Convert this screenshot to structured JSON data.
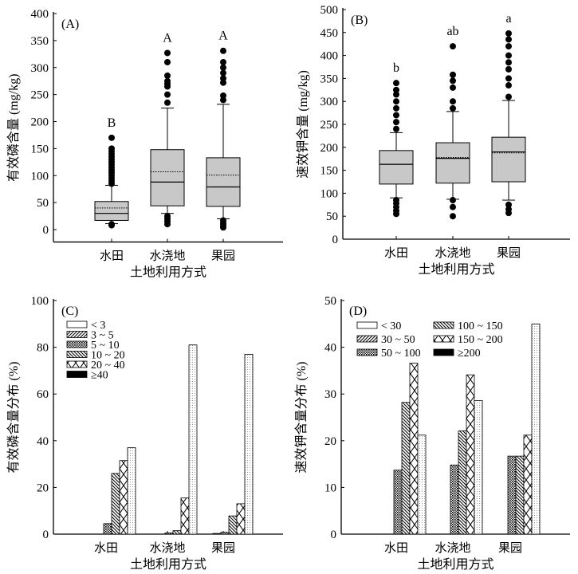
{
  "chart_data": [
    {
      "panel": "(A)",
      "type": "box",
      "ylabel": "有效磷含量 (mg/kg)",
      "xlabel": "土地利用方式",
      "ylim": [
        -20,
        400
      ],
      "yticks": [
        0,
        50,
        100,
        150,
        200,
        250,
        300,
        350,
        400
      ],
      "categories": [
        "水田",
        "水浇地",
        "果园"
      ],
      "boxes": [
        {
          "whisker_low": 11,
          "q1": 17,
          "median": 30,
          "mean": 40,
          "q3": 52,
          "whisker_high": 82,
          "outliers": [
            8,
            10,
            85,
            90,
            95,
            100,
            105,
            110,
            115,
            120,
            125,
            130,
            135,
            140,
            145,
            150,
            170
          ],
          "letter": "B"
        },
        {
          "whisker_low": 30,
          "q1": 44,
          "median": 88,
          "mean": 107,
          "q3": 148,
          "whisker_high": 225,
          "outliers": [
            10,
            15,
            20,
            25,
            235,
            250,
            265,
            270,
            275,
            285,
            310,
            327
          ],
          "letter": "A"
        },
        {
          "whisker_low": 20,
          "q1": 43,
          "median": 79,
          "mean": 101,
          "q3": 133,
          "whisker_high": 232,
          "outliers": [
            4,
            8,
            12,
            17,
            240,
            248,
            272,
            280,
            290,
            300,
            310,
            331
          ],
          "letter": "A"
        }
      ]
    },
    {
      "panel": "(B)",
      "type": "box",
      "ylabel": "速效钾含量 (mg/kg)",
      "xlabel": "土地利用方式",
      "ylim": [
        0,
        500
      ],
      "yticks": [
        0,
        50,
        100,
        150,
        200,
        250,
        300,
        350,
        400,
        450,
        500
      ],
      "categories": [
        "水田",
        "水浇地",
        "果园"
      ],
      "boxes": [
        {
          "whisker_low": 90,
          "q1": 120,
          "median": 163,
          "mean": 163,
          "q3": 193,
          "whisker_high": 232,
          "outliers": [
            55,
            62,
            70,
            78,
            85,
            240,
            255,
            270,
            285,
            300,
            315,
            325,
            340
          ],
          "letter": "b"
        },
        {
          "whisker_low": 87,
          "q1": 122,
          "median": 176,
          "mean": 178,
          "q3": 210,
          "whisker_high": 278,
          "outliers": [
            50,
            70,
            85,
            285,
            300,
            330,
            345,
            358,
            420
          ],
          "letter": "ab"
        },
        {
          "whisker_low": 85,
          "q1": 125,
          "median": 190,
          "mean": 188,
          "q3": 222,
          "whisker_high": 302,
          "outliers": [
            57,
            65,
            75,
            310,
            335,
            350,
            370,
            385,
            400,
            420,
            435,
            448
          ],
          "letter": "a"
        }
      ]
    },
    {
      "panel": "(C)",
      "type": "bar",
      "ylabel": "有效磷含量分布 (%)",
      "xlabel": "土地利用方式",
      "ylim": [
        0,
        100
      ],
      "yticks": [
        0,
        20,
        40,
        60,
        80,
        100
      ],
      "categories": [
        "水田",
        "水浇地",
        "果园"
      ],
      "series": [
        {
          "name": "< 3",
          "values": [
            0,
            0,
            0
          ]
        },
        {
          "name": "3 ~ 5",
          "values": [
            0,
            0,
            0.3
          ]
        },
        {
          "name": "5 ~ 10",
          "values": [
            4.5,
            0.5,
            0.8
          ]
        },
        {
          "name": "10 ~ 20",
          "values": [
            26,
            1.5,
            7.8
          ]
        },
        {
          "name": "20 ~ 40",
          "values": [
            31.5,
            15.5,
            13
          ]
        },
        {
          "name": "≥40",
          "values": [
            37,
            81,
            77
          ]
        }
      ]
    },
    {
      "panel": "(D)",
      "type": "bar",
      "ylabel": "速效钾含量分布 (%)",
      "xlabel": "土地利用方式",
      "ylim": [
        0,
        50
      ],
      "yticks": [
        0,
        10,
        20,
        30,
        40,
        50
      ],
      "categories": [
        "水田",
        "水浇地",
        "果园"
      ],
      "series": [
        {
          "name": "< 30",
          "values": [
            0,
            0,
            0
          ]
        },
        {
          "name": "30 ~ 50",
          "values": [
            0,
            0,
            0
          ]
        },
        {
          "name": "50 ~ 100",
          "values": [
            13.7,
            14.8,
            16.7
          ]
        },
        {
          "name": "100 ~ 150",
          "values": [
            28.2,
            22.1,
            16.7
          ]
        },
        {
          "name": "150 ~ 200",
          "values": [
            36.6,
            34.1,
            21.2
          ]
        },
        {
          "name": "≥200",
          "values": [
            21.2,
            28.6,
            45
          ]
        }
      ]
    }
  ]
}
